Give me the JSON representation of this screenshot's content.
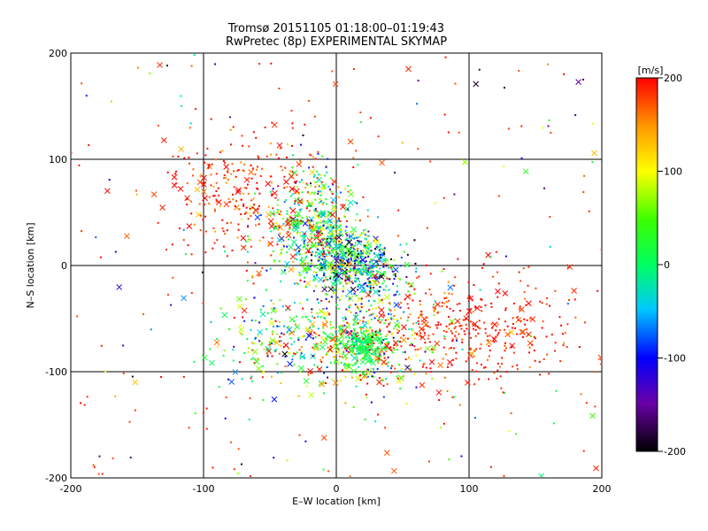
{
  "chart_data": {
    "type": "scatter",
    "title": "Tromsø 20151105 01:18:00–01:19:43",
    "subtitle": "RwPretec (8p) EXPERIMENTAL SKYMAP",
    "xlabel": "E–W location [km]",
    "ylabel": "N–S location [km]",
    "xlim": [
      -200,
      200
    ],
    "ylim": [
      -200,
      200
    ],
    "x_ticks": [
      "-200",
      "-100",
      "0",
      "100",
      "200"
    ],
    "y_ticks": [
      "-200",
      "-100",
      "0",
      "100",
      "200"
    ],
    "grid": true,
    "colorbar": {
      "unit": "[m/s]",
      "range": [
        -200,
        200
      ],
      "ticks": [
        "200",
        "100",
        "0",
        "-100",
        "-200"
      ]
    },
    "clusters": [
      {
        "cx": -20,
        "cy": 40,
        "sx": 18,
        "sy": 25,
        "vmean": 40,
        "vsd": 90
      },
      {
        "cx": 0,
        "cy": 5,
        "sx": 15,
        "sy": 18,
        "vmean": -10,
        "vsd": 100
      },
      {
        "cx": 20,
        "cy": -5,
        "sx": 15,
        "sy": 15,
        "vmean": -30,
        "vsd": 100
      },
      {
        "cx": 25,
        "cy": -70,
        "sx": 25,
        "sy": 22,
        "vmean": 60,
        "vsd": 110
      },
      {
        "cx": 20,
        "cy": -75,
        "sx": 8,
        "sy": 8,
        "vmean": 10,
        "vsd": 15
      },
      {
        "cx": 100,
        "cy": -60,
        "sx": 40,
        "sy": 25,
        "vmean": 190,
        "vsd": 20
      },
      {
        "cx": -70,
        "cy": 70,
        "sx": 30,
        "sy": 30,
        "vmean": 190,
        "vsd": 25
      },
      {
        "cx": -40,
        "cy": -70,
        "sx": 30,
        "sy": 22,
        "vmean": 60,
        "vsd": 100
      }
    ]
  }
}
